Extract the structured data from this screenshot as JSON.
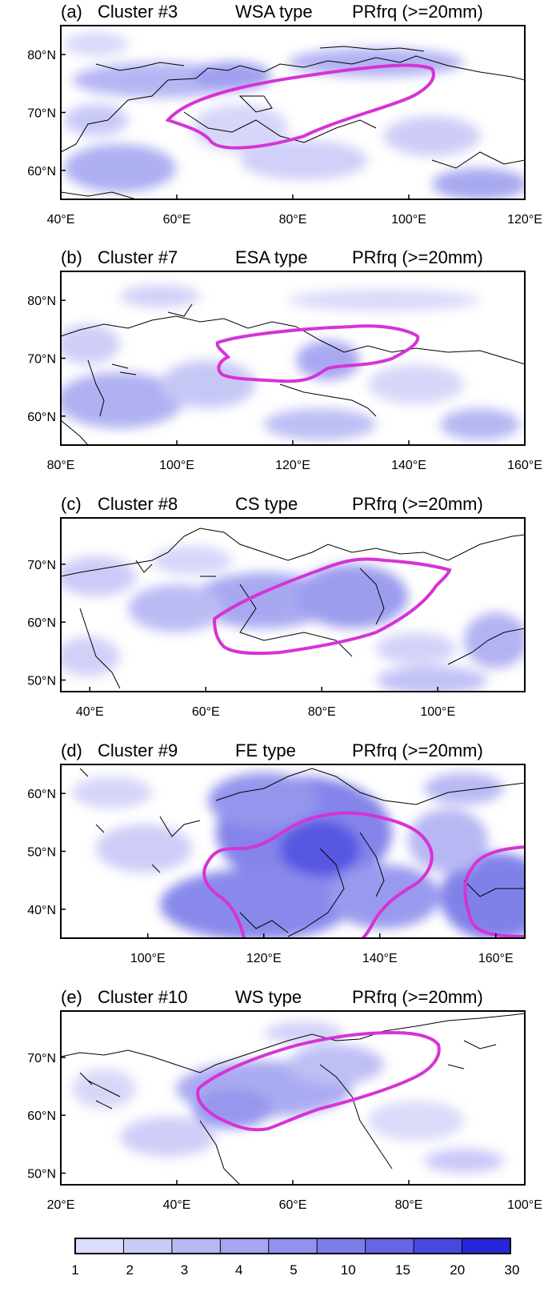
{
  "panels": [
    {
      "tag": "(a)",
      "cluster": "Cluster #3",
      "type": "WSA type",
      "var": "PRfrq (>=20mm)",
      "lon": [
        40,
        120
      ],
      "lat": [
        55,
        85
      ],
      "xticks": [
        "40°E",
        "60°E",
        "80°E",
        "100°E",
        "120°E"
      ],
      "xtick_vals": [
        40,
        60,
        80,
        100,
        120
      ],
      "yticks": [
        "80°N",
        "70°N",
        "60°N"
      ],
      "ytick_vals": [
        80,
        70,
        60
      ],
      "contour_color": "#d633d6"
    },
    {
      "tag": "(b)",
      "cluster": "Cluster #7",
      "type": "ESA type",
      "var": "PRfrq (>=20mm)",
      "lon": [
        80,
        160
      ],
      "lat": [
        55,
        85
      ],
      "xticks": [
        "80°E",
        "100°E",
        "120°E",
        "140°E",
        "160°E"
      ],
      "xtick_vals": [
        80,
        100,
        120,
        140,
        160
      ],
      "yticks": [
        "80°N",
        "70°N",
        "60°N"
      ],
      "ytick_vals": [
        80,
        70,
        60
      ],
      "contour_color": "#d633d6"
    },
    {
      "tag": "(c)",
      "cluster": "Cluster #8",
      "type": "CS type",
      "var": "PRfrq (>=20mm)",
      "lon": [
        35,
        115
      ],
      "lat": [
        48,
        78
      ],
      "xticks": [
        "40°E",
        "60°E",
        "80°E",
        "100°E"
      ],
      "xtick_vals": [
        40,
        60,
        80,
        100
      ],
      "yticks": [
        "70°N",
        "60°N",
        "50°N"
      ],
      "ytick_vals": [
        70,
        60,
        50
      ],
      "contour_color": "#d633d6"
    },
    {
      "tag": "(d)",
      "cluster": "Cluster #9",
      "type": "FE type",
      "var": "PRfrq (>=20mm)",
      "lon": [
        85,
        165
      ],
      "lat": [
        35,
        65
      ],
      "xticks": [
        "100°E",
        "120°E",
        "140°E",
        "160°E"
      ],
      "xtick_vals": [
        100,
        120,
        140,
        160
      ],
      "yticks": [
        "60°N",
        "50°N",
        "40°N"
      ],
      "ytick_vals": [
        60,
        50,
        40
      ],
      "contour_color": "#d633d6"
    },
    {
      "tag": "(e)",
      "cluster": "Cluster #10",
      "type": "WS type",
      "var": "PRfrq (>=20mm)",
      "lon": [
        20,
        100
      ],
      "lat": [
        48,
        78
      ],
      "xticks": [
        "20°E",
        "40°E",
        "60°E",
        "80°E",
        "100°E"
      ],
      "xtick_vals": [
        20,
        40,
        60,
        80,
        100
      ],
      "yticks": [
        "70°N",
        "60°N",
        "50°N"
      ],
      "ytick_vals": [
        70,
        60,
        50
      ],
      "contour_color": "#d633d6"
    }
  ],
  "colorbar": {
    "labels": [
      "1",
      "2",
      "3",
      "4",
      "5",
      "10",
      "15",
      "20",
      "30"
    ],
    "colors": [
      "#dcdcfb",
      "#cacaf8",
      "#b8b8f4",
      "#a5a5f1",
      "#9292ee",
      "#7d7de9",
      "#6565e5",
      "#4848e0",
      "#2626da"
    ]
  }
}
